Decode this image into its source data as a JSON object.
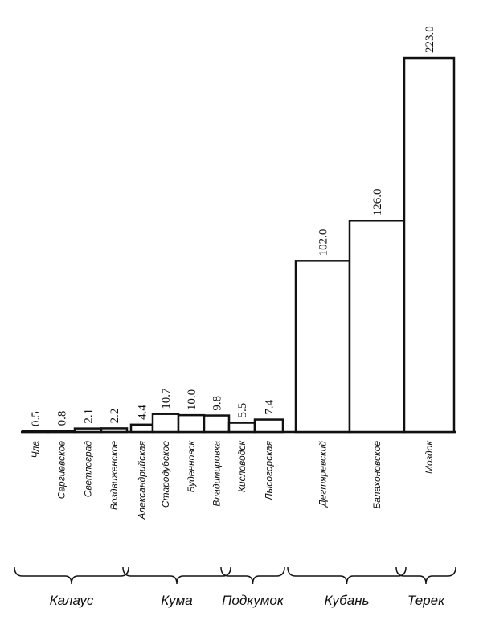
{
  "chart_data": {
    "type": "bar",
    "categories": [
      "Чла",
      "Сергиевское",
      "Светлоград",
      "Воздвиженское",
      "Александрийская",
      "Стародубское",
      "Буденновск",
      "Владимировка",
      "Кисловодск",
      "Лысогорская",
      "Дегтяревский",
      "Балахоновское",
      "Моздок"
    ],
    "values": [
      0.5,
      0.8,
      2.1,
      2.2,
      4.4,
      10.7,
      10.0,
      9.8,
      5.5,
      7.4,
      102.0,
      126.0,
      223.0
    ],
    "value_labels": [
      "0.5",
      "0.8",
      "2.1",
      "2.2",
      "4.4",
      "10.7",
      "10.0",
      "9.8",
      "5.5",
      "7.4",
      "102.0",
      "126.0",
      "223.0"
    ],
    "groups": [
      "Калаус",
      "Кума",
      "Подкумок",
      "Кубань",
      "Терек"
    ],
    "color": "#111111"
  }
}
